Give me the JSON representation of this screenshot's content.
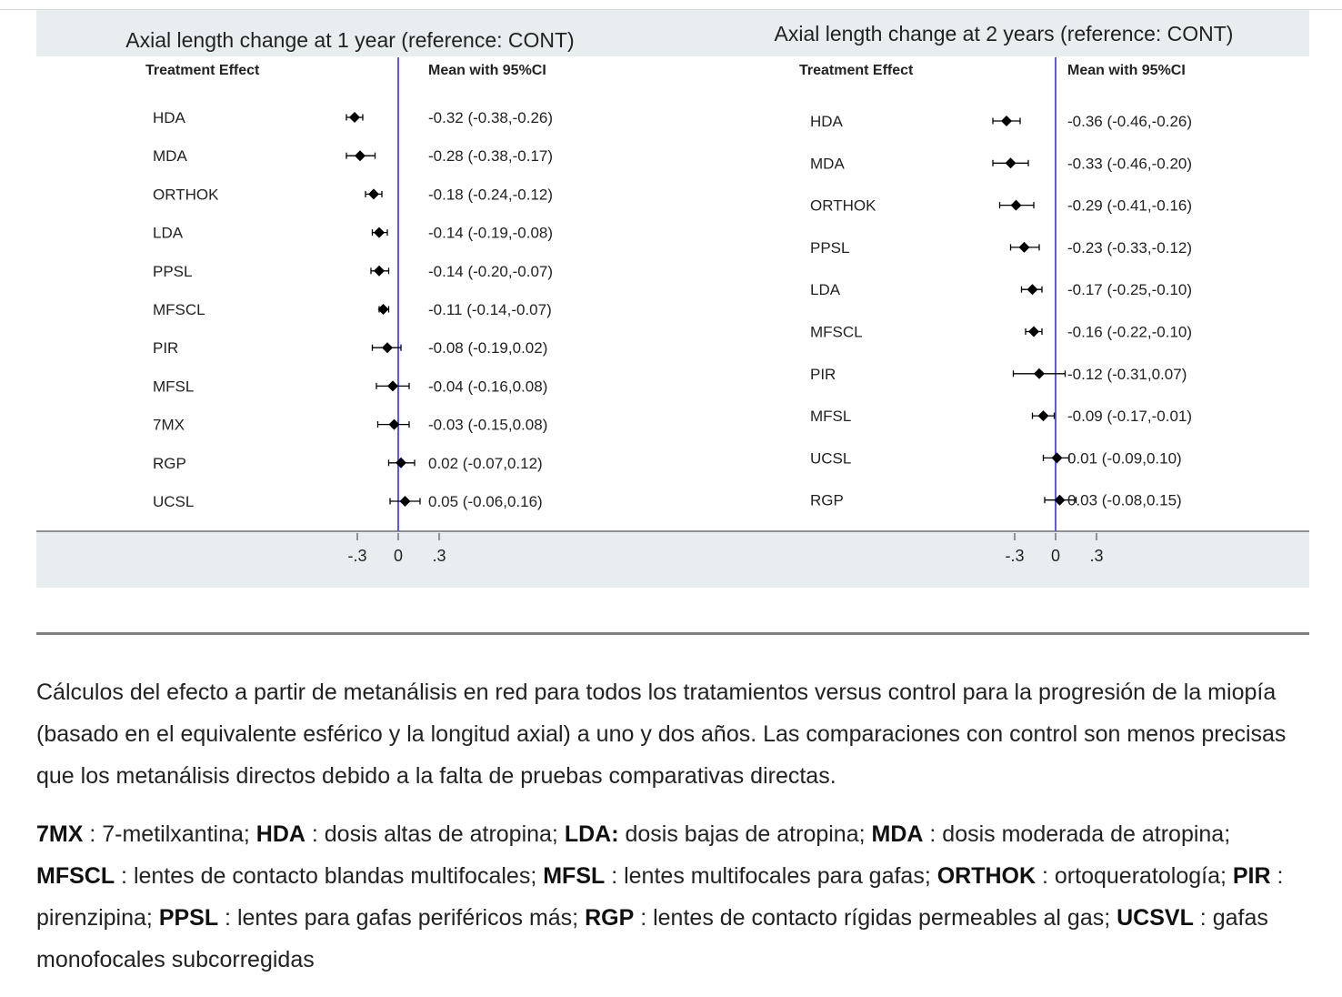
{
  "chart_data": [
    {
      "type": "forest",
      "title": "Axial length change at 1 year (reference: CONT)",
      "col_left_header": "Treatment Effect",
      "col_right_header": "Mean with 95%CI",
      "xticks": [
        "-.3",
        "0",
        ".3"
      ],
      "xtick_values": [
        -0.3,
        0,
        0.3
      ],
      "reference_value": 0,
      "rows": [
        {
          "label": "HDA",
          "mean": -0.32,
          "lo": -0.38,
          "hi": -0.26,
          "text": "-0.32 (-0.38,-0.26)"
        },
        {
          "label": "MDA",
          "mean": -0.28,
          "lo": -0.38,
          "hi": -0.17,
          "text": "-0.28 (-0.38,-0.17)"
        },
        {
          "label": "ORTHOK",
          "mean": -0.18,
          "lo": -0.24,
          "hi": -0.12,
          "text": "-0.18 (-0.24,-0.12)"
        },
        {
          "label": "LDA",
          "mean": -0.14,
          "lo": -0.19,
          "hi": -0.08,
          "text": "-0.14 (-0.19,-0.08)"
        },
        {
          "label": "PPSL",
          "mean": -0.14,
          "lo": -0.2,
          "hi": -0.07,
          "text": "-0.14 (-0.20,-0.07)"
        },
        {
          "label": "MFSCL",
          "mean": -0.11,
          "lo": -0.14,
          "hi": -0.07,
          "text": "-0.11 (-0.14,-0.07)"
        },
        {
          "label": "PIR",
          "mean": -0.08,
          "lo": -0.19,
          "hi": 0.02,
          "text": "-0.08 (-0.19,0.02)"
        },
        {
          "label": "MFSL",
          "mean": -0.04,
          "lo": -0.16,
          "hi": 0.08,
          "text": "-0.04 (-0.16,0.08)"
        },
        {
          "label": "7MX",
          "mean": -0.03,
          "lo": -0.15,
          "hi": 0.08,
          "text": "-0.03 (-0.15,0.08)"
        },
        {
          "label": "RGP",
          "mean": 0.02,
          "lo": -0.07,
          "hi": 0.12,
          "text": "0.02 (-0.07,0.12)"
        },
        {
          "label": "UCSL",
          "mean": 0.05,
          "lo": -0.06,
          "hi": 0.16,
          "text": "0.05 (-0.06,0.16)"
        }
      ]
    },
    {
      "type": "forest",
      "title": "Axial length change at 2 years (reference: CONT)",
      "col_left_header": "Treatment Effect",
      "col_right_header": "Mean with 95%CI",
      "xticks": [
        "-.3",
        "0",
        ".3"
      ],
      "xtick_values": [
        -0.3,
        0,
        0.3
      ],
      "reference_value": 0,
      "rows": [
        {
          "label": "HDA",
          "mean": -0.36,
          "lo": -0.46,
          "hi": -0.26,
          "text": "-0.36 (-0.46,-0.26)"
        },
        {
          "label": "MDA",
          "mean": -0.33,
          "lo": -0.46,
          "hi": -0.2,
          "text": "-0.33 (-0.46,-0.20)"
        },
        {
          "label": "ORTHOK",
          "mean": -0.29,
          "lo": -0.41,
          "hi": -0.16,
          "text": "-0.29 (-0.41,-0.16)"
        },
        {
          "label": "PPSL",
          "mean": -0.23,
          "lo": -0.33,
          "hi": -0.12,
          "text": "-0.23 (-0.33,-0.12)"
        },
        {
          "label": "LDA",
          "mean": -0.17,
          "lo": -0.25,
          "hi": -0.1,
          "text": "-0.17 (-0.25,-0.10)"
        },
        {
          "label": "MFSCL",
          "mean": -0.16,
          "lo": -0.22,
          "hi": -0.1,
          "text": "-0.16 (-0.22,-0.10)"
        },
        {
          "label": "PIR",
          "mean": -0.12,
          "lo": -0.31,
          "hi": 0.07,
          "text": "-0.12 (-0.31,0.07)"
        },
        {
          "label": "MFSL",
          "mean": -0.09,
          "lo": -0.17,
          "hi": -0.01,
          "text": "-0.09 (-0.17,-0.01)"
        },
        {
          "label": "UCSL",
          "mean": 0.01,
          "lo": -0.09,
          "hi": 0.1,
          "text": "0.01 (-0.09,0.10)"
        },
        {
          "label": "RGP",
          "mean": 0.03,
          "lo": -0.08,
          "hi": 0.15,
          "text": "0.03 (-0.08,0.15)"
        }
      ]
    }
  ],
  "caption": {
    "paragraph": "Cálculos del efecto a partir de metanálisis en red para todos los tratamientos versus control para la progresión de la miopía (basado en el equivalente esférico y la longitud axial) a uno y dos años. Las comparaciones con control son menos precisas que los metanálisis directos debido a la falta de pruebas comparativas directas.",
    "abbreviations": [
      {
        "abbr": "7MX",
        "def": " : 7-metilxantina; "
      },
      {
        "abbr": "HDA",
        "def": " : dosis altas de atropina; "
      },
      {
        "abbr": "LDA:",
        "def": " dosis bajas de atropina; "
      },
      {
        "abbr": "MDA",
        "def": " : dosis moderada de atropina; "
      },
      {
        "abbr": "MFSCL",
        "def": " : lentes de contacto blandas multifocales; "
      },
      {
        "abbr": "MFSL",
        "def": " : lentes multifocales para gafas; "
      },
      {
        "abbr": "ORTHOK",
        "def": " : ortoqueratología; "
      },
      {
        "abbr": "PIR",
        "def": " : pirenzipina; "
      },
      {
        "abbr": "PPSL",
        "def": " : lentes para gafas periféricos más; "
      },
      {
        "abbr": "RGP",
        "def": " : lentes de contacto rígidas permeables al gas; "
      },
      {
        "abbr": "UCSVL",
        "def": " : gafas monofocales subcorregidas"
      }
    ]
  },
  "colors": {
    "panel_bg": "#e8eef0",
    "plot_bg": "#ffffff",
    "reference_line": "#5a5ae6",
    "marker": "#000000",
    "axis": "#555555",
    "separator": "#7f7f7f",
    "text": "#222222"
  }
}
